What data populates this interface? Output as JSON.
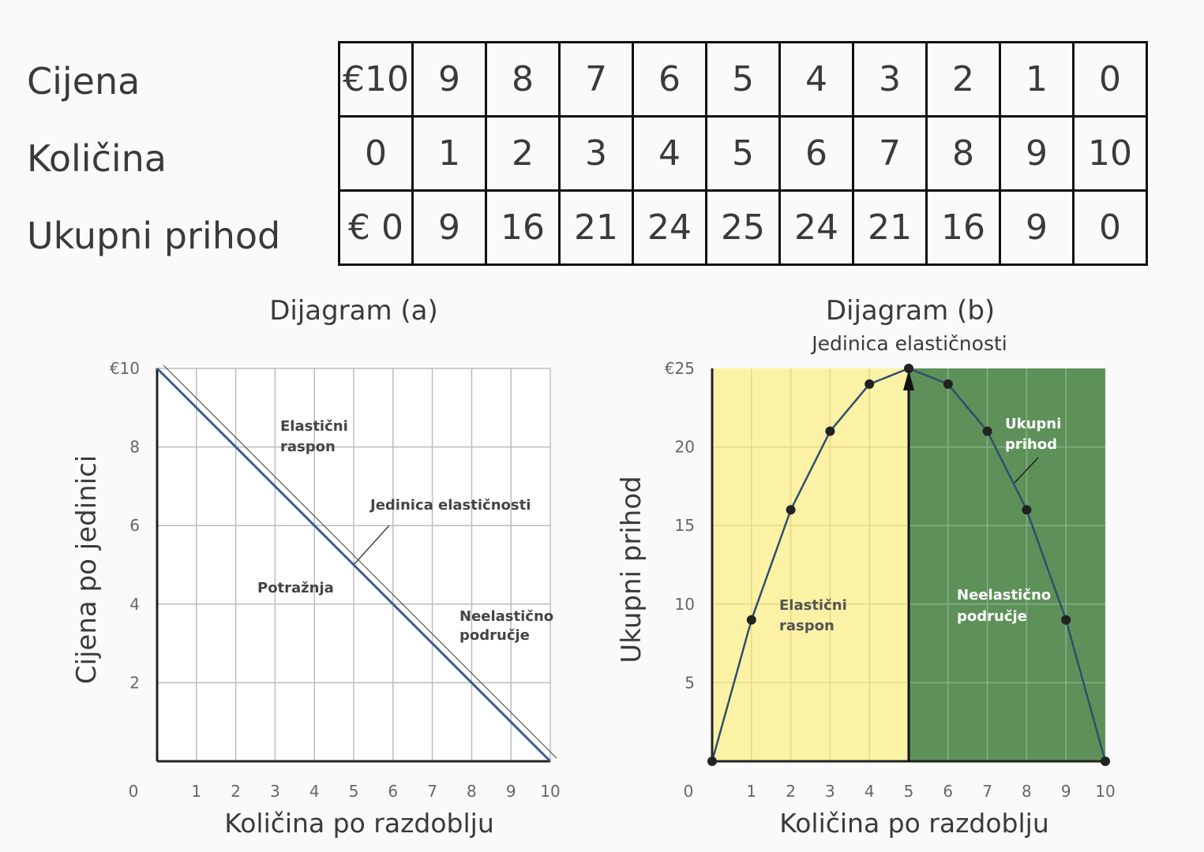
{
  "table": {
    "rows": [
      {
        "label": "Cijena",
        "cells": [
          "€10",
          "9",
          "8",
          "7",
          "6",
          "5",
          "4",
          "3",
          "2",
          "1",
          "0"
        ]
      },
      {
        "label": "Količina",
        "cells": [
          "0",
          "1",
          "2",
          "3",
          "4",
          "5",
          "6",
          "7",
          "8",
          "9",
          "10"
        ]
      },
      {
        "label": "Ukupni prihod",
        "cells": [
          "€ 0",
          "9",
          "16",
          "21",
          "24",
          "25",
          "24",
          "21",
          "16",
          "9",
          "0"
        ]
      }
    ]
  },
  "diagram_a": {
    "title": "Dijagram (a)"
  },
  "diagram_b": {
    "title": "Dijagram (b)",
    "subtitle": "Jedinica elastičnosti"
  },
  "chart_data": [
    {
      "type": "line",
      "title": "Dijagram (a)",
      "xlabel": "Količina po razdoblju",
      "ylabel": "Cijena po jedinici",
      "xlim": [
        0,
        10
      ],
      "ylim": [
        0,
        10
      ],
      "x_ticks": [
        "0",
        "1",
        "2",
        "3",
        "4",
        "5",
        "6",
        "7",
        "8",
        "9",
        "10"
      ],
      "y_ticks": [
        "€10",
        "8",
        "6",
        "4",
        "2"
      ],
      "grid": true,
      "series": [
        {
          "name": "Potražnja",
          "x": [
            0,
            1,
            2,
            3,
            4,
            5,
            6,
            7,
            8,
            9,
            10
          ],
          "y": [
            10,
            9,
            8,
            7,
            6,
            5,
            4,
            3,
            2,
            1,
            0
          ]
        }
      ],
      "annotations": {
        "elastic": "Elastični raspon",
        "unit": "Jedinica elastičnosti",
        "demand": "Potražnja",
        "inelastic": "Neelastično područje"
      }
    },
    {
      "type": "line",
      "title": "Dijagram (b)",
      "subtitle": "Jedinica elastičnosti",
      "xlabel": "Količina po razdoblju",
      "ylabel": "Ukupni prihod",
      "xlim": [
        0,
        10
      ],
      "ylim": [
        0,
        25
      ],
      "x_ticks": [
        "0",
        "1",
        "2",
        "3",
        "4",
        "5",
        "6",
        "7",
        "8",
        "9",
        "10"
      ],
      "y_ticks": [
        "€25",
        "20",
        "15",
        "10",
        "5"
      ],
      "grid": true,
      "series": [
        {
          "name": "Ukupni prihod",
          "x": [
            0,
            1,
            2,
            3,
            4,
            5,
            6,
            7,
            8,
            9,
            10
          ],
          "y": [
            0,
            9,
            16,
            21,
            24,
            25,
            24,
            21,
            16,
            9,
            0
          ]
        }
      ],
      "regions": [
        {
          "label": "Elastični raspon",
          "from": 0,
          "to": 5,
          "color": "#fbf2a6"
        },
        {
          "label": "Neelastično područje",
          "from": 5,
          "to": 10,
          "color": "#5e9159"
        }
      ],
      "annotations": {
        "elastic": "Elastični raspon",
        "inelastic": "Neelastično područje",
        "revenue": "Ukupni prihod"
      }
    }
  ]
}
